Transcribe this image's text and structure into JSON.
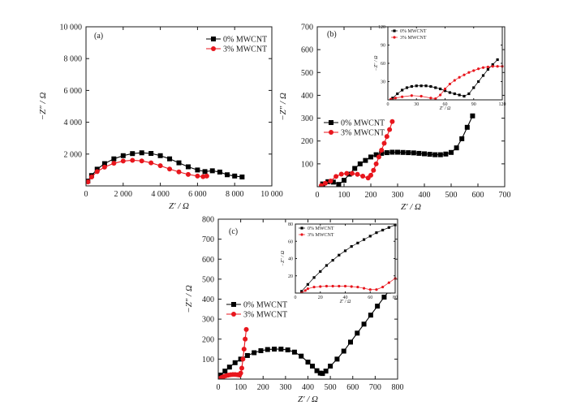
{
  "chart_data": [
    {
      "type": "scatter",
      "panel_label": "(a)",
      "xlabel": "Z′ / Ω",
      "ylabel": "−Z″ / Ω",
      "xlim": [
        0,
        10000
      ],
      "ylim": [
        0,
        10000
      ],
      "x_ticks": [
        0,
        2000,
        4000,
        6000,
        8000,
        10000
      ],
      "x_tick_labels": [
        "0",
        "2 000",
        "4 000",
        "6 000",
        "8 000",
        "10 000"
      ],
      "y_ticks": [
        2000,
        4000,
        6000,
        8000,
        10000
      ],
      "y_tick_labels": [
        "2 000",
        "4 000",
        "6 000",
        "8 000",
        "10 000"
      ],
      "legend_position": "top-right",
      "series": [
        {
          "name": "0% MWCNT",
          "color": "#000000",
          "marker": "square",
          "x": [
            100,
            300,
            600,
            1000,
            1500,
            2000,
            2500,
            3000,
            3500,
            4000,
            4500,
            5000,
            5500,
            6000,
            6400,
            6800,
            7200,
            7600,
            8000,
            8400
          ],
          "y": [
            300,
            650,
            1050,
            1400,
            1700,
            1900,
            2030,
            2080,
            2040,
            1900,
            1700,
            1450,
            1200,
            1000,
            900,
            950,
            870,
            700,
            620,
            560
          ]
        },
        {
          "name": "3% MWCNT",
          "color": "#e8161d",
          "marker": "circle",
          "x": [
            100,
            300,
            600,
            1000,
            1500,
            2000,
            2500,
            3000,
            3500,
            4000,
            4500,
            5000,
            5500,
            6000,
            6300,
            6500
          ],
          "y": [
            250,
            560,
            900,
            1180,
            1420,
            1560,
            1610,
            1570,
            1450,
            1270,
            1060,
            880,
            720,
            620,
            580,
            620
          ]
        }
      ]
    },
    {
      "type": "scatter",
      "panel_label": "(b)",
      "xlabel": "Z′ / Ω",
      "ylabel": "−Z″ / Ω",
      "xlim": [
        0,
        700
      ],
      "ylim": [
        0,
        700
      ],
      "x_ticks": [
        0,
        100,
        200,
        300,
        400,
        500,
        600,
        700
      ],
      "x_tick_labels": [
        "0",
        "100",
        "200",
        "300",
        "400",
        "500",
        "600",
        "700"
      ],
      "y_ticks": [
        100,
        200,
        300,
        400,
        500,
        600,
        700
      ],
      "y_tick_labels": [
        "100",
        "200",
        "300",
        "400",
        "500",
        "600",
        "700"
      ],
      "legend_position": "middle-left",
      "series": [
        {
          "name": "0% MWCNT",
          "color": "#000000",
          "marker": "square",
          "x": [
            20,
            40,
            60,
            80,
            100,
            120,
            140,
            160,
            180,
            200,
            220,
            240,
            260,
            280,
            300,
            320,
            340,
            360,
            380,
            400,
            420,
            440,
            460,
            480,
            500,
            520,
            540,
            560,
            580
          ],
          "y": [
            12,
            22,
            20,
            10,
            28,
            55,
            80,
            100,
            115,
            130,
            140,
            146,
            149,
            151,
            151,
            150,
            149,
            148,
            146,
            144,
            142,
            140,
            140,
            143,
            150,
            170,
            210,
            260,
            310
          ]
        },
        {
          "name": "3% MWCNT",
          "color": "#e8161d",
          "marker": "circle",
          "x": [
            15,
            30,
            50,
            70,
            90,
            110,
            130,
            150,
            170,
            190,
            200,
            210,
            220,
            230,
            240,
            250,
            260,
            270,
            280
          ],
          "y": [
            5,
            15,
            25,
            45,
            55,
            58,
            58,
            54,
            46,
            38,
            50,
            72,
            100,
            130,
            160,
            190,
            220,
            250,
            285
          ]
        }
      ]
    },
    {
      "type": "line",
      "panel_label": "(b) inset",
      "xlabel": "Z′ / Ω",
      "ylabel": "−Z″ / Ω",
      "xlim": [
        0,
        120
      ],
      "ylim": [
        0,
        120
      ],
      "x_ticks": [
        0,
        30,
        60,
        90,
        120
      ],
      "x_tick_labels": [
        "0",
        "30",
        "60",
        "90",
        "120"
      ],
      "y_ticks": [
        30,
        60,
        90,
        120
      ],
      "y_tick_labels": [
        "30",
        "60",
        "90",
        "120"
      ],
      "legend_position": "top-left",
      "series": [
        {
          "name": "0% MWCNT",
          "color": "#000000",
          "marker": "square",
          "x": [
            5,
            10,
            15,
            20,
            25,
            30,
            35,
            40,
            45,
            50,
            55,
            60,
            65,
            70,
            75,
            80,
            85,
            90,
            95,
            100,
            105,
            110,
            115
          ],
          "y": [
            3,
            10,
            16,
            20,
            22,
            23,
            23,
            23,
            22,
            20,
            18,
            15,
            12,
            10,
            8,
            6,
            10,
            20,
            30,
            40,
            50,
            58,
            66
          ]
        },
        {
          "name": "3% MWCNT",
          "color": "#e8161d",
          "marker": "circle",
          "x": [
            3,
            8,
            15,
            25,
            35,
            45,
            50,
            55,
            60,
            65,
            70,
            75,
            80,
            85,
            90,
            95,
            100,
            105,
            110,
            115,
            120
          ],
          "y": [
            1,
            3,
            5,
            7,
            6,
            3,
            2,
            8,
            18,
            26,
            32,
            37,
            41,
            45,
            48,
            51,
            53,
            54,
            55,
            55,
            55
          ]
        }
      ]
    },
    {
      "type": "scatter",
      "panel_label": "(c)",
      "xlabel": "Z′ / Ω",
      "ylabel": "−Z″ / Ω",
      "xlim": [
        0,
        800
      ],
      "ylim": [
        0,
        800
      ],
      "x_ticks": [
        0,
        100,
        200,
        300,
        400,
        500,
        600,
        700,
        800
      ],
      "x_tick_labels": [
        "0",
        "100",
        "200",
        "300",
        "400",
        "500",
        "600",
        "700",
        "800"
      ],
      "y_ticks": [
        100,
        200,
        300,
        400,
        500,
        600,
        700,
        800
      ],
      "y_tick_labels": [
        "100",
        "200",
        "300",
        "400",
        "500",
        "600",
        "700",
        "800"
      ],
      "legend_position": "middle-left",
      "series": [
        {
          "name": "0% MWCNT",
          "color": "#000000",
          "marker": "square",
          "x": [
            10,
            30,
            50,
            75,
            100,
            130,
            160,
            190,
            220,
            250,
            280,
            310,
            340,
            370,
            400,
            420,
            440,
            455,
            465,
            480,
            500,
            530,
            560,
            590,
            620,
            650,
            680,
            710,
            740,
            760
          ],
          "y": [
            20,
            40,
            60,
            82,
            100,
            118,
            132,
            142,
            148,
            150,
            150,
            146,
            135,
            115,
            85,
            65,
            42,
            30,
            28,
            40,
            65,
            100,
            140,
            185,
            230,
            275,
            320,
            365,
            410,
            440
          ]
        },
        {
          "name": "3% MWCNT",
          "color": "#e8161d",
          "marker": "circle",
          "x": [
            5,
            15,
            25,
            35,
            45,
            55,
            65,
            75,
            85,
            95,
            100,
            105,
            110,
            115,
            120,
            125
          ],
          "y": [
            3,
            8,
            13,
            17,
            20,
            22,
            23,
            23,
            22,
            20,
            30,
            55,
            100,
            150,
            200,
            248
          ]
        }
      ]
    },
    {
      "type": "line",
      "panel_label": "(c) inset",
      "xlabel": "Z′ / Ω",
      "ylabel": "−Z″ / Ω",
      "xlim": [
        0,
        80
      ],
      "ylim": [
        0,
        80
      ],
      "x_ticks": [
        0,
        20,
        40,
        60,
        80
      ],
      "x_tick_labels": [
        "0",
        "20",
        "40",
        "60",
        "80"
      ],
      "y_ticks": [
        20,
        40,
        60,
        80
      ],
      "y_tick_labels": [
        "20",
        "40",
        "60",
        "80"
      ],
      "legend_position": "top-left",
      "series": [
        {
          "name": "0% MWCNT",
          "color": "#000000",
          "marker": "square",
          "x": [
            5,
            10,
            15,
            20,
            25,
            30,
            35,
            40,
            45,
            50,
            55,
            60,
            65,
            70,
            75,
            80
          ],
          "y": [
            2,
            10,
            18,
            25,
            32,
            38,
            44,
            49,
            54,
            58,
            62,
            66,
            70,
            73,
            76,
            79
          ]
        },
        {
          "name": "3% MWCNT",
          "color": "#e8161d",
          "marker": "circle",
          "x": [
            5,
            8,
            10,
            15,
            20,
            25,
            30,
            35,
            40,
            45,
            50,
            55,
            60,
            65,
            70,
            75,
            80
          ],
          "y": [
            0,
            3,
            5,
            7,
            7.5,
            8,
            8,
            8,
            8,
            7.5,
            7,
            5.5,
            4,
            4,
            7,
            12,
            17
          ]
        }
      ]
    }
  ]
}
